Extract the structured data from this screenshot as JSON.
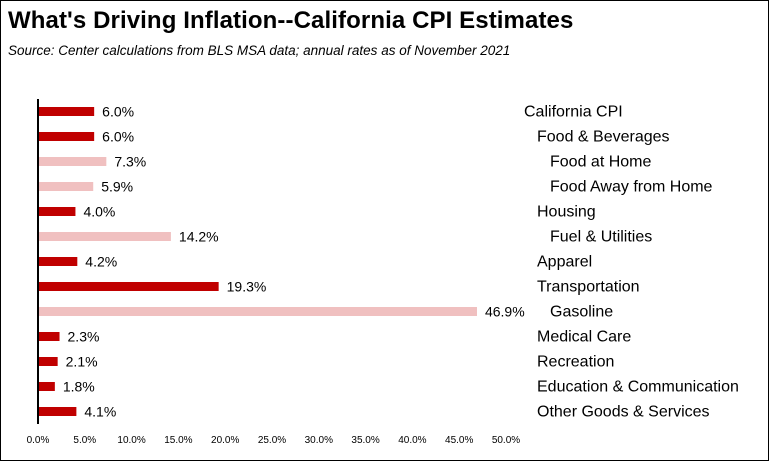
{
  "chart_data": {
    "type": "bar",
    "orientation": "horizontal",
    "title": "What's Driving Inflation--California CPI Estimates",
    "subtitle": "Source:  Center calculations from BLS MSA data; annual rates as of November 2021",
    "categories": [
      "California CPI",
      "Food & Beverages",
      "Food at Home",
      "Food Away from Home",
      "Housing",
      "Fuel & Utilities",
      "Apparel",
      "Transportation",
      "Gasoline",
      "Medical Care",
      "Recreation",
      "Education & Communication",
      "Other Goods & Services"
    ],
    "category_level": [
      0,
      1,
      2,
      2,
      1,
      2,
      1,
      1,
      2,
      1,
      1,
      1,
      1
    ],
    "values": [
      6.0,
      6.0,
      7.3,
      5.9,
      4.0,
      14.2,
      4.2,
      19.3,
      46.9,
      2.3,
      2.1,
      1.8,
      4.1
    ],
    "value_labels": [
      "6.0%",
      "6.0%",
      "7.3%",
      "5.9%",
      "4.0%",
      "14.2%",
      "4.2%",
      "19.3%",
      "46.9%",
      "2.3%",
      "2.1%",
      "1.8%",
      "4.1%"
    ],
    "xlim": [
      0,
      50
    ],
    "x_ticks": [
      "0.0%",
      "5.0%",
      "10.0%",
      "15.0%",
      "20.0%",
      "25.0%",
      "30.0%",
      "35.0%",
      "40.0%",
      "45.0%",
      "50.0%"
    ],
    "grid": false,
    "legend": "none",
    "colors": {
      "primary": "#c00000",
      "secondary": "#f0c0c0"
    }
  }
}
